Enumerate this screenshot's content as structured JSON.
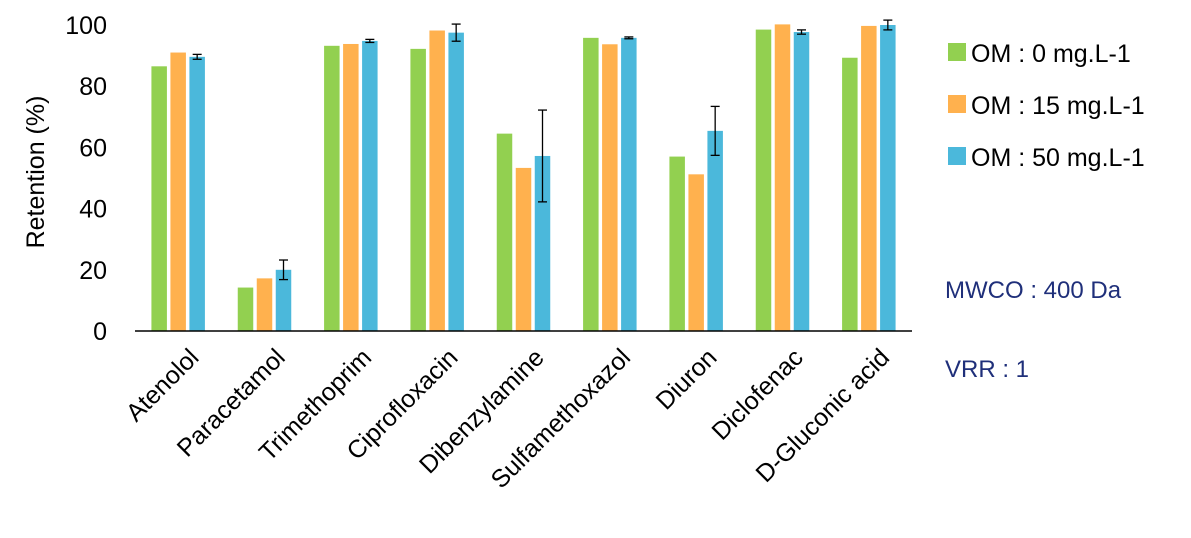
{
  "chart_data": {
    "type": "bar",
    "title": "",
    "xlabel": "",
    "ylabel": "Retention (%)",
    "ylim": [
      0,
      100
    ],
    "yticks": [
      0,
      20,
      40,
      60,
      80,
      100
    ],
    "grid": false,
    "legend_position": "right",
    "categories": [
      "Atenolol",
      "Paracetamol",
      "Trimethoprim",
      "Ciprofloxacin",
      "Dibenzylamine",
      "Sulfamethoxazol",
      "Diuron",
      "Diclofenac",
      "D-Gluconic acid"
    ],
    "series": [
      {
        "name": "OM : 0 mg.L-1",
        "color": "#92d050",
        "values": [
          86.5,
          14.2,
          93.2,
          92.2,
          64.5,
          95.8,
          57.0,
          98.5,
          89.3
        ],
        "errors": [
          0,
          0,
          0,
          0,
          0,
          0,
          0,
          0,
          0
        ]
      },
      {
        "name": "OM : 15 mg.L-1",
        "color": "#ffb14e",
        "values": [
          91.0,
          17.2,
          93.8,
          98.2,
          53.3,
          93.7,
          51.2,
          100.2,
          99.7
        ],
        "errors": [
          0,
          0,
          0,
          0,
          0,
          0,
          0,
          0,
          0
        ]
      },
      {
        "name": "OM : 50 mg.L-1",
        "color": "#4bb8db",
        "values": [
          89.6,
          20.0,
          94.8,
          97.5,
          57.2,
          95.8,
          65.4,
          97.7,
          100.0
        ],
        "errors": [
          0.8,
          3.2,
          0.5,
          2.8,
          15.0,
          0.3,
          8.0,
          0.7,
          1.6
        ]
      }
    ],
    "annotations": [
      "MWCO : 400 Da",
      "VRR : 1"
    ]
  }
}
